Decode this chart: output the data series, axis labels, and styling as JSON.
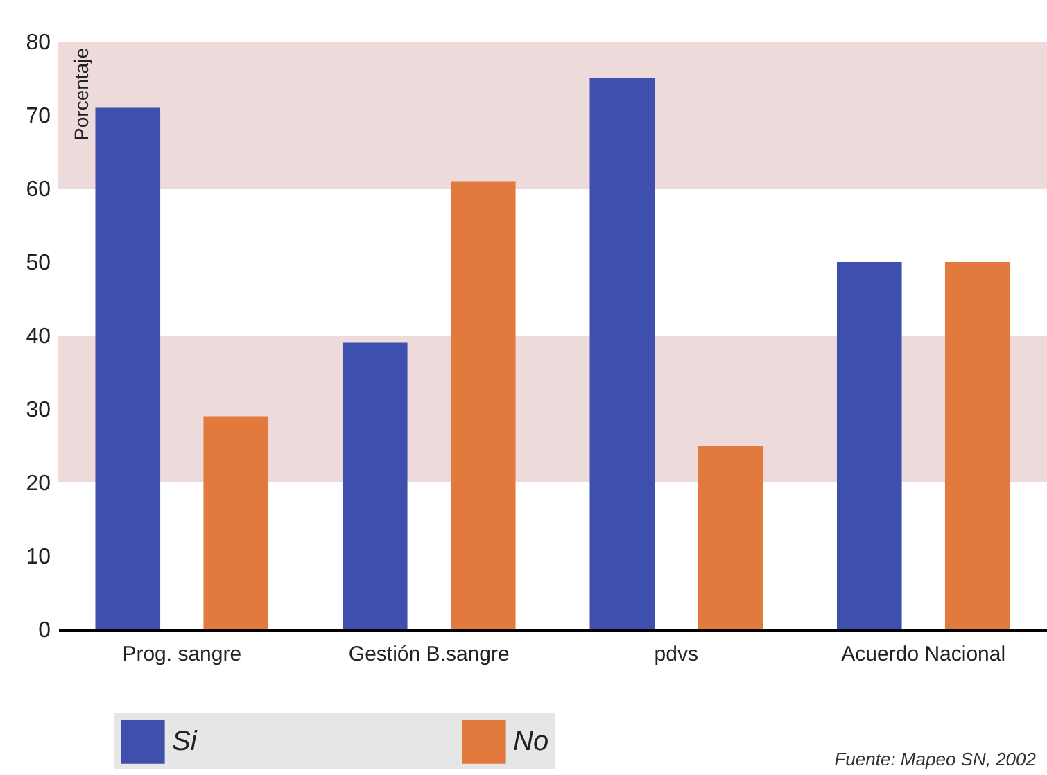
{
  "chart_data": {
    "type": "bar",
    "ylabel": "Porcentaje",
    "categories": [
      "Prog. sangre",
      "Gestión B.sangre",
      "pdvs",
      "Acuerdo Nacional"
    ],
    "series": [
      {
        "name": "Si",
        "color": "#3f4fae",
        "values": [
          71,
          39,
          75,
          50
        ]
      },
      {
        "name": "No",
        "color": "#e27a3e",
        "values": [
          29,
          61,
          25,
          50
        ]
      }
    ],
    "ylim": [
      0,
      80
    ],
    "yticks": [
      0,
      10,
      20,
      30,
      40,
      50,
      60,
      70,
      80
    ],
    "grid": false,
    "legend": "bottom",
    "bands": [
      {
        "axis": "y",
        "from": 20,
        "to": 40,
        "color": "#e8d2d2"
      },
      {
        "axis": "y",
        "from": 60,
        "to": 80,
        "color": "#e8d2d2"
      }
    ],
    "annotations": [
      "Fuente: Mapeo SN, 2002"
    ]
  }
}
